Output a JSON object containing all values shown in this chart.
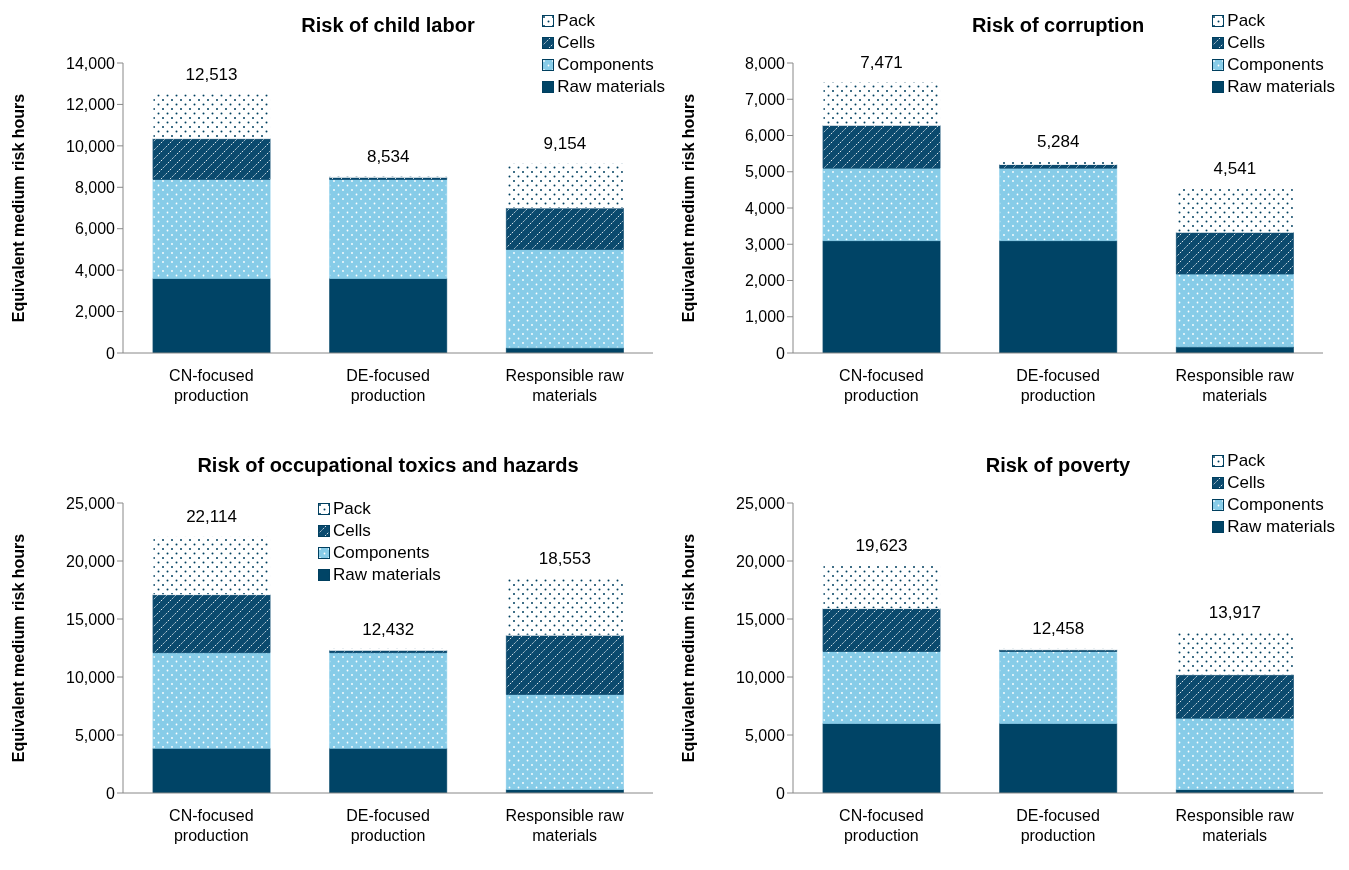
{
  "chart_data": [
    {
      "type": "bar",
      "title": "Risk of child labor",
      "ylabel": "Equivalent medium risk hours",
      "categories": [
        "CN-focused production",
        "DE-focused production",
        "Responsible raw materials"
      ],
      "stacked": true,
      "ylim": [
        0,
        14000
      ],
      "yticks": [
        {
          "value": 0,
          "label": "0"
        },
        {
          "value": 2000,
          "label": "2,000"
        },
        {
          "value": 4000,
          "label": "4,000"
        },
        {
          "value": 6000,
          "label": "6,000"
        },
        {
          "value": 8000,
          "label": "8,000"
        },
        {
          "value": 10000,
          "label": "10,000"
        },
        {
          "value": 12000,
          "label": "12,000"
        },
        {
          "value": 14000,
          "label": "14,000"
        }
      ],
      "legend": "top right",
      "totals": [
        "12,513",
        "8,534",
        "9,154"
      ],
      "series": [
        {
          "name": "Raw materials",
          "color": "#004466",
          "values": [
            3600,
            3600,
            250
          ]
        },
        {
          "name": "Components",
          "color": "#87cce8",
          "values": [
            4780,
            4780,
            4750
          ]
        },
        {
          "name": "Cells",
          "color": "#0b4a6e",
          "values": [
            1970,
            100,
            2000
          ]
        },
        {
          "name": "Pack",
          "color": "#ffffff",
          "values": [
            2163,
            54,
            2154
          ]
        }
      ]
    },
    {
      "type": "bar",
      "title": "Risk of corruption",
      "ylabel": "Equivalent medium risk hours",
      "categories": [
        "CN-focused production",
        "DE-focused production",
        "Responsible raw materials"
      ],
      "stacked": true,
      "ylim": [
        0,
        8000
      ],
      "yticks": [
        {
          "value": 0,
          "label": "0"
        },
        {
          "value": 1000,
          "label": "1,000"
        },
        {
          "value": 2000,
          "label": "2,000"
        },
        {
          "value": 3000,
          "label": "3,000"
        },
        {
          "value": 4000,
          "label": "4,000"
        },
        {
          "value": 5000,
          "label": "5,000"
        },
        {
          "value": 6000,
          "label": "6,000"
        },
        {
          "value": 7000,
          "label": "7,000"
        },
        {
          "value": 8000,
          "label": "8,000"
        }
      ],
      "legend": "top right",
      "totals": [
        "7,471",
        "5,284",
        "4,541"
      ],
      "series": [
        {
          "name": "Raw materials",
          "color": "#004466",
          "values": [
            3100,
            3100,
            170
          ]
        },
        {
          "name": "Components",
          "color": "#87cce8",
          "values": [
            2000,
            2000,
            2010
          ]
        },
        {
          "name": "Cells",
          "color": "#0b4a6e",
          "values": [
            1180,
            100,
            1150
          ]
        },
        {
          "name": "Pack",
          "color": "#ffffff",
          "values": [
            1191,
            84,
            1211
          ]
        }
      ]
    },
    {
      "type": "bar",
      "title": "Risk of occupational toxics and hazards",
      "ylabel": "Equivalent medium risk hours",
      "categories": [
        "CN-focused production",
        "DE-focused production",
        "Responsible raw materials"
      ],
      "stacked": true,
      "ylim": [
        0,
        25000
      ],
      "yticks": [
        {
          "value": 0,
          "label": "0"
        },
        {
          "value": 5000,
          "label": "5,000"
        },
        {
          "value": 10000,
          "label": "10,000"
        },
        {
          "value": 15000,
          "label": "15,000"
        },
        {
          "value": 20000,
          "label": "20,000"
        },
        {
          "value": 25000,
          "label": "25,000"
        }
      ],
      "legend": "top",
      "totals": [
        "22,114",
        "12,432",
        "18,553"
      ],
      "series": [
        {
          "name": "Raw materials",
          "color": "#004466",
          "values": [
            3850,
            3850,
            300
          ]
        },
        {
          "name": "Components",
          "color": "#87cce8",
          "values": [
            8250,
            8250,
            8200
          ]
        },
        {
          "name": "Cells",
          "color": "#0b4a6e",
          "values": [
            5000,
            200,
            5100
          ]
        },
        {
          "name": "Pack",
          "color": "#ffffff",
          "values": [
            5014,
            132,
            4953
          ]
        }
      ]
    },
    {
      "type": "bar",
      "title": "Risk of poverty",
      "ylabel": "Equivalent medium risk hours",
      "categories": [
        "CN-focused production",
        "DE-focused production",
        "Responsible raw materials"
      ],
      "stacked": true,
      "ylim": [
        0,
        25000
      ],
      "yticks": [
        {
          "value": 0,
          "label": "0"
        },
        {
          "value": 5000,
          "label": "5,000"
        },
        {
          "value": 10000,
          "label": "10,000"
        },
        {
          "value": 15000,
          "label": "15,000"
        },
        {
          "value": 20000,
          "label": "20,000"
        },
        {
          "value": 25000,
          "label": "25,000"
        }
      ],
      "legend": "top right",
      "totals": [
        "19,623",
        "12,458",
        "13,917"
      ],
      "series": [
        {
          "name": "Raw materials",
          "color": "#004466",
          "values": [
            6000,
            6000,
            300
          ]
        },
        {
          "name": "Components",
          "color": "#87cce8",
          "values": [
            6200,
            6200,
            6150
          ]
        },
        {
          "name": "Cells",
          "color": "#0b4a6e",
          "values": [
            3700,
            150,
            3750
          ]
        },
        {
          "name": "Pack",
          "color": "#ffffff",
          "values": [
            3723,
            108,
            3717
          ]
        }
      ]
    }
  ]
}
